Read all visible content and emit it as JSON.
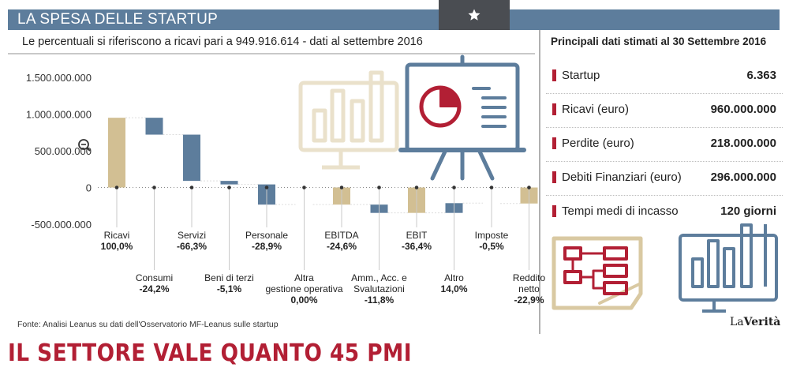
{
  "header": {
    "title": "LA SPESA DELLE STARTUP"
  },
  "subtitle": "Le percentuali si riferiscono a ricavi pari a 949.916.614 - dati al settembre 2016",
  "source": "Fonte: Analisi Leanus su dati dell'Osservatorio MF-Leanus sulle startup",
  "headline": "IL SETTORE VALE QUANTO 45 PMI",
  "panel": {
    "title": "Principali dati stimati al 30 Settembre 2016",
    "items": [
      {
        "label": "Startup",
        "value": "6.363"
      },
      {
        "label": "Ricavi (euro)",
        "value": "960.000.000"
      },
      {
        "label": "Perdite (euro)",
        "value": "218.000.000"
      },
      {
        "label": "Debiti Finanziari (euro)",
        "value": "296.000.000"
      },
      {
        "label": "Tempi medi di incasso",
        "value": "120 giorni"
      }
    ]
  },
  "logo": {
    "part1": "La",
    "part2": "Verità"
  },
  "colors": {
    "tan": "#d2bf93",
    "blue": "#5d7d9c",
    "red": "#b21f34",
    "banner": "#5d7d9c"
  },
  "icons": [
    "star-icon",
    "zoom-out-icon",
    "monitor-bar-chart-icon",
    "presentation-pie-chart-icon",
    "flowchart-document-icon",
    "bar-chart-monitor-icon"
  ],
  "chart_data": {
    "type": "bar",
    "subtype": "waterfall",
    "ylim": [
      -500000000,
      1500000000
    ],
    "yticks": [
      "1.500.000.000",
      "1.000.000.000",
      "500.000.000",
      "0",
      "-500.000.000"
    ],
    "ytick_values": [
      1500000000,
      1000000000,
      500000000,
      0,
      -500000000
    ],
    "categories": [
      {
        "name": "Ricavi",
        "pct": "100,0%",
        "start": 0,
        "end": 950000000,
        "color": "tan"
      },
      {
        "name": "Consumi",
        "pct": "-24,2%",
        "start": 950000000,
        "end": 720000000,
        "color": "blue"
      },
      {
        "name": "Servizi",
        "pct": "-66,3%",
        "start": 720000000,
        "end": 90000000,
        "color": "blue"
      },
      {
        "name": "Beni di terzi",
        "pct": "-5,1%",
        "start": 90000000,
        "end": 42000000,
        "color": "blue"
      },
      {
        "name": "Personale",
        "pct": "-28,9%",
        "start": 42000000,
        "end": -233000000,
        "color": "blue"
      },
      {
        "name": "Altra gestione operativa",
        "pct": "0,00%",
        "start": -233000000,
        "end": -233000000,
        "color": "blue"
      },
      {
        "name": "EBITDA",
        "pct": "-24,6%",
        "start": 0,
        "end": -233000000,
        "color": "tan"
      },
      {
        "name": "Amm., Acc. e Svalutazioni",
        "pct": "-11,8%",
        "start": -233000000,
        "end": -346000000,
        "color": "blue"
      },
      {
        "name": "EBIT",
        "pct": "-36,4%",
        "start": 0,
        "end": -346000000,
        "color": "tan"
      },
      {
        "name": "Altro",
        "pct": "14,0%",
        "start": -346000000,
        "end": -213000000,
        "color": "blue"
      },
      {
        "name": "Imposte",
        "pct": "-0,5%",
        "start": -213000000,
        "end": -218000000,
        "color": "blue"
      },
      {
        "name": "Reddito netto",
        "pct": "-22,9%",
        "start": 0,
        "end": -218000000,
        "color": "tan"
      }
    ]
  }
}
